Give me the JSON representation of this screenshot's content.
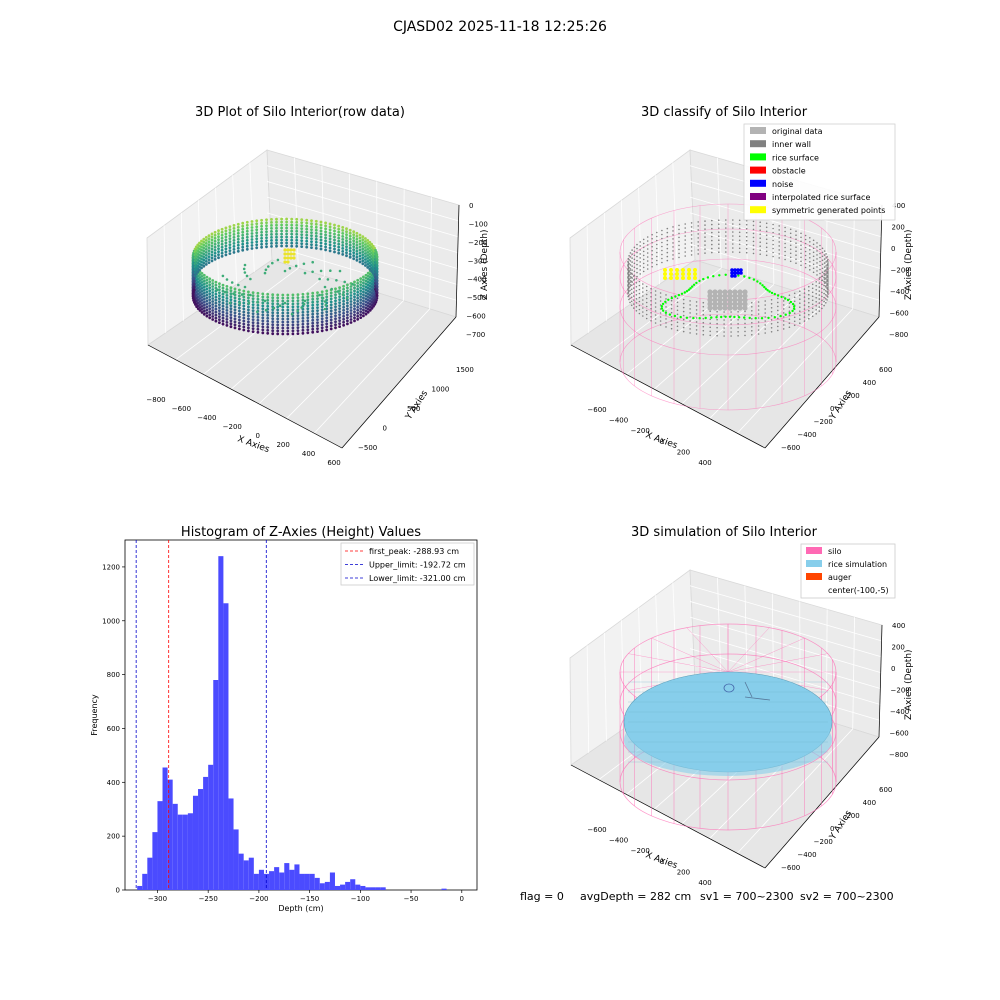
{
  "figure": {
    "suptitle": "CJASD02 2025-11-18 12:25:26",
    "footer": {
      "flag": "flag = 0",
      "avg_depth": "avgDepth = 282 cm",
      "sv1": "sv1 = 700~2300",
      "sv2": "sv2 = 700~2300"
    }
  },
  "colors": {
    "original_data": "#b3b3b3",
    "inner_wall": "#808080",
    "rice_surface": "#00ff00",
    "obstacle": "#ff0000",
    "noise": "#0000ff",
    "interpolated_rice_surface": "#800080",
    "symmetric_generated_points": "#ffff00",
    "silo": "#ff69b4",
    "rice_simulation": "#87ceeb",
    "auger": "#ff4500",
    "hist_bar": "#4b4bff",
    "first_peak_line": "#ff0000",
    "limit_line": "#0000cc"
  },
  "chart_data": [
    {
      "type": "scatter",
      "title": "3D Plot of Silo Interior(row data)",
      "xlabel": "X Axies",
      "ylabel": "Y Axies",
      "zlabel": "Z Axies (Depth)",
      "x_ticks": [
        "−800",
        "−600",
        "−400",
        "−200",
        "0",
        "200",
        "400",
        "600"
      ],
      "y_ticks": [
        "−500",
        "0",
        "500",
        "1000",
        "1500"
      ],
      "z_ticks": [
        "0",
        "−100",
        "−200",
        "−300",
        "−400",
        "−500",
        "−600",
        "−700"
      ],
      "colormap": "viridis",
      "grid": true
    },
    {
      "type": "scatter",
      "title": "3D classify of Silo Interior",
      "xlabel": "X Axies",
      "ylabel": "Y Axies",
      "zlabel": "Z Axies (Depth)",
      "x_ticks": [
        "−600",
        "−400",
        "−200",
        "0",
        "200",
        "400"
      ],
      "y_ticks": [
        "−600",
        "−400",
        "−200",
        "0",
        "200",
        "400",
        "600"
      ],
      "z_ticks": [
        "400",
        "200",
        "0",
        "−200",
        "−400",
        "−600",
        "−800"
      ],
      "legend_position": "top-right",
      "legend": [
        {
          "label": "original data",
          "color_key": "original_data"
        },
        {
          "label": "inner wall",
          "color_key": "inner_wall"
        },
        {
          "label": "rice surface",
          "color_key": "rice_surface"
        },
        {
          "label": "obstacle",
          "color_key": "obstacle"
        },
        {
          "label": "noise",
          "color_key": "noise"
        },
        {
          "label": "interpolated rice surface",
          "color_key": "interpolated_rice_surface"
        },
        {
          "label": "symmetric generated points",
          "color_key": "symmetric_generated_points"
        }
      ],
      "grid": true
    },
    {
      "type": "bar",
      "title": "Histogram of Z-Axies (Height) Values",
      "xlabel": "Depth (cm)",
      "ylabel": "Frequency",
      "xlim": [
        -332,
        15
      ],
      "ylim": [
        0,
        1300
      ],
      "x_ticks": [
        -300,
        -250,
        -200,
        -150,
        -100,
        -50,
        0
      ],
      "y_ticks": [
        0,
        200,
        400,
        600,
        800,
        1000,
        1200
      ],
      "bin_width": 5,
      "bins_start": [
        -320,
        -315,
        -310,
        -305,
        -300,
        -295,
        -290,
        -285,
        -280,
        -275,
        -270,
        -265,
        -260,
        -255,
        -250,
        -245,
        -240,
        -235,
        -230,
        -225,
        -220,
        -215,
        -210,
        -205,
        -200,
        -195,
        -190,
        -185,
        -180,
        -175,
        -170,
        -165,
        -160,
        -155,
        -150,
        -145,
        -140,
        -135,
        -130,
        -125,
        -120,
        -115,
        -110,
        -105,
        -100,
        -95,
        -90,
        -85,
        -80,
        -75,
        -70,
        -65,
        -60,
        -55,
        -50,
        -45,
        -40,
        -35,
        -30,
        -25,
        -20,
        -15,
        -10,
        -5,
        0
      ],
      "values": [
        15,
        60,
        120,
        215,
        330,
        455,
        410,
        320,
        280,
        280,
        285,
        350,
        375,
        420,
        465,
        780,
        1240,
        1065,
        340,
        225,
        135,
        110,
        120,
        60,
        75,
        60,
        70,
        85,
        65,
        100,
        75,
        95,
        60,
        60,
        60,
        45,
        25,
        30,
        65,
        15,
        20,
        30,
        40,
        20,
        15,
        10,
        10,
        10,
        10,
        0,
        0,
        0,
        0,
        0,
        0,
        0,
        0,
        0,
        0,
        0,
        5,
        0,
        0,
        0,
        0
      ],
      "vlines": [
        {
          "label": "first_peak: -288.93 cm",
          "x": -288.93,
          "color_key": "first_peak_line"
        },
        {
          "label": "Upper_limit: -192.72 cm",
          "x": -192.72,
          "color_key": "limit_line"
        },
        {
          "label": "Lower_limit: -321.00 cm",
          "x": -321.0,
          "color_key": "limit_line"
        }
      ],
      "legend_position": "top-right"
    },
    {
      "type": "scatter",
      "title": "3D simulation of Silo Interior",
      "xlabel": "X Axies",
      "ylabel": "Y Axies",
      "zlabel": "Z Axies (Depth)",
      "x_ticks": [
        "−600",
        "−400",
        "−200",
        "0",
        "200",
        "400"
      ],
      "y_ticks": [
        "−600",
        "−400",
        "−200",
        "0",
        "200",
        "400",
        "600"
      ],
      "z_ticks": [
        "400",
        "200",
        "0",
        "−200",
        "−400",
        "−600",
        "−800"
      ],
      "legend_position": "top-right",
      "legend": [
        {
          "label": "silo",
          "color_key": "silo"
        },
        {
          "label": "rice simulation",
          "color_key": "rice_simulation"
        },
        {
          "label": "auger",
          "color_key": "auger"
        },
        {
          "label": "center(-100,-5)",
          "color_key": ""
        }
      ],
      "grid": true
    }
  ]
}
